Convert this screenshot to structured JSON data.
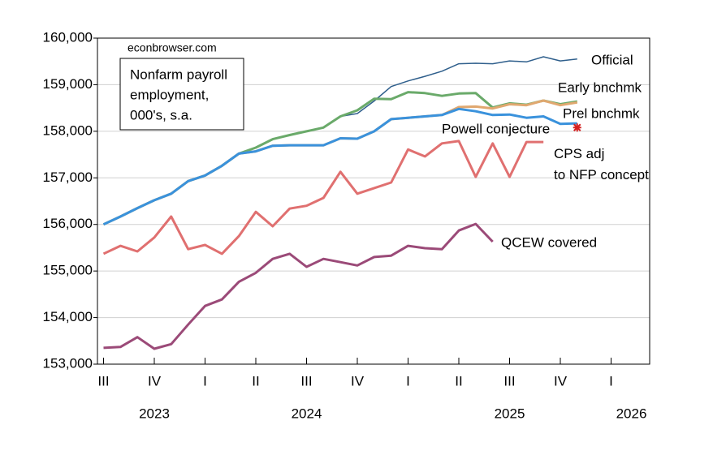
{
  "chart_data": {
    "type": "line",
    "annotation": [
      "Nonfarm payroll",
      "employment,",
      "000's, s.a."
    ],
    "source": "econbrowser.com",
    "x": [
      2023.5,
      2023.583,
      2023.667,
      2023.75,
      2023.833,
      2023.917,
      2024.0,
      2024.083,
      2024.167,
      2024.25,
      2024.333,
      2024.417,
      2024.5,
      2024.583,
      2024.667,
      2024.75,
      2024.833,
      2024.917,
      2025.0,
      2025.083,
      2025.167,
      2025.25,
      2025.333,
      2025.417,
      2025.5,
      2025.583,
      2025.667,
      2025.75,
      2025.833
    ],
    "series": [
      {
        "name": "Official",
        "color": "#2f5f8c",
        "values": [
          156000,
          156170,
          156350,
          156520,
          156660,
          156930,
          157050,
          157260,
          157520,
          157650,
          157830,
          157920,
          158000,
          158080,
          158320,
          158380,
          158650,
          158960,
          159080,
          159180,
          159290,
          159450,
          159460,
          159450,
          159510,
          159490,
          159600,
          159510,
          159550
        ]
      },
      {
        "name": "Early bnchmk",
        "color": "#2e8b2e",
        "values": [
          156000,
          156170,
          156350,
          156520,
          156660,
          156930,
          157050,
          157260,
          157520,
          157650,
          157830,
          157920,
          158000,
          158080,
          158320,
          158450,
          158700,
          158690,
          158840,
          158820,
          158760,
          158810,
          158820,
          158510,
          158600,
          158570,
          158660,
          158580,
          158640
        ]
      },
      {
        "name": "Prel bnchmk",
        "color": "#d98c30",
        "values": [
          156000,
          156170,
          156350,
          156520,
          156660,
          156930,
          157050,
          157260,
          157520,
          157570,
          157690,
          157700,
          157700,
          157700,
          157850,
          157840,
          158000,
          158260,
          158290,
          158320,
          158350,
          158520,
          158530,
          158490,
          158580,
          158560,
          158660,
          158560,
          158620
        ]
      },
      {
        "name": "Powell conjecture",
        "color": "#2e8ee6",
        "values": [
          156000,
          156170,
          156350,
          156520,
          156660,
          156930,
          157050,
          157260,
          157520,
          157570,
          157690,
          157700,
          157700,
          157700,
          157850,
          157840,
          158000,
          158260,
          158290,
          158320,
          158350,
          158480,
          158430,
          158350,
          158360,
          158290,
          158320,
          158160,
          158170
        ]
      },
      {
        "name": "CPS adj to NFP concept",
        "color": "#d42020",
        "values": [
          155370,
          155540,
          155420,
          155720,
          156170,
          155470,
          155560,
          155370,
          155750,
          156270,
          155960,
          156340,
          156400,
          156570,
          157130,
          156660,
          156780,
          156900,
          157610,
          157460,
          157740,
          157790,
          157020,
          157740,
          157020,
          157770,
          157770,
          null,
          158080
        ]
      },
      {
        "name": "QCEW covered",
        "color": "#8b2a5e",
        "values": [
          153350,
          153370,
          153580,
          153330,
          153430,
          153850,
          154250,
          154390,
          154770,
          154960,
          155260,
          155370,
          155090,
          155260,
          155190,
          155120,
          155300,
          155330,
          155540,
          155490,
          155470,
          155870,
          156010,
          155630,
          null,
          null,
          null,
          null,
          null
        ]
      }
    ],
    "xlim": [
      2023.47,
      2026.19
    ],
    "xticks": [
      {
        "value": 2023.5,
        "label": "III"
      },
      {
        "value": 2023.75,
        "label": "IV"
      },
      {
        "value": 2024.0,
        "label": "I"
      },
      {
        "value": 2024.25,
        "label": "II"
      },
      {
        "value": 2024.5,
        "label": "III"
      },
      {
        "value": 2024.75,
        "label": "IV"
      },
      {
        "value": 2025.0,
        "label": "I"
      },
      {
        "value": 2025.25,
        "label": "II"
      },
      {
        "value": 2025.5,
        "label": "III"
      },
      {
        "value": 2025.75,
        "label": "IV"
      },
      {
        "value": 2026.0,
        "label": "I"
      }
    ],
    "year_labels": [
      {
        "value": 2023.75,
        "label": "2023"
      },
      {
        "value": 2024.5,
        "label": "2024"
      },
      {
        "value": 2025.5,
        "label": "2025"
      },
      {
        "value": 2026.1,
        "label": "2026"
      }
    ],
    "ylim": [
      153000,
      160000
    ],
    "yticks": [
      {
        "value": 153000,
        "label": "153,000"
      },
      {
        "value": 154000,
        "label": "154,000"
      },
      {
        "value": 155000,
        "label": "155,000"
      },
      {
        "value": 156000,
        "label": "156,000"
      },
      {
        "value": 157000,
        "label": "157,000"
      },
      {
        "value": 158000,
        "label": "158,000"
      },
      {
        "value": 159000,
        "label": "159,000"
      },
      {
        "value": 160000,
        "label": "160,000"
      }
    ],
    "grid": true
  }
}
